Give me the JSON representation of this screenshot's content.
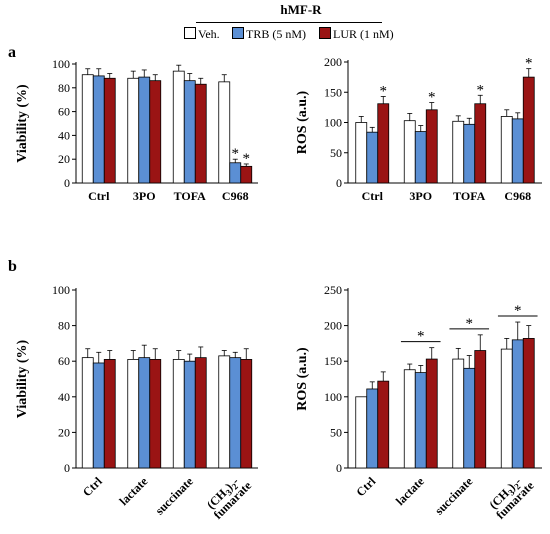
{
  "header": {
    "title": "hMF-R"
  },
  "legend": [
    {
      "label": "Veh.",
      "color": "#ffffff"
    },
    {
      "label": "TRB (5 nM)",
      "color": "#5b8fd4"
    },
    {
      "label": "LUR (1 nM)",
      "color": "#9a1414"
    }
  ],
  "panels": {
    "a": "a",
    "b": "b"
  },
  "colors": {
    "veh": "#ffffff",
    "trb": "#5b8fd4",
    "lur": "#9a1414",
    "star_fill": "#e60000"
  },
  "chart_data": [
    {
      "id": "a-viability",
      "type": "bar",
      "ylabel": "Viability (%)",
      "ylim": [
        0,
        100
      ],
      "yticks": [
        0,
        20,
        40,
        60,
        80,
        100
      ],
      "categories": [
        "Ctrl",
        "3PO",
        "TOFA",
        "C968"
      ],
      "series": [
        {
          "name": "Veh.",
          "values": [
            91,
            88,
            94,
            85
          ],
          "errors": [
            5,
            6,
            5,
            6
          ]
        },
        {
          "name": "TRB (5 nM)",
          "values": [
            90,
            89,
            86,
            17
          ],
          "errors": [
            6,
            6,
            6,
            3
          ]
        },
        {
          "name": "LUR (1 nM)",
          "values": [
            88,
            86,
            83,
            14
          ],
          "errors": [
            4,
            5,
            5,
            2
          ]
        }
      ],
      "significance": [
        [
          3,
          1
        ],
        [
          3,
          2
        ]
      ],
      "star": "*"
    },
    {
      "id": "a-ros",
      "type": "bar",
      "ylabel": "ROS (a.u.)",
      "ylim": [
        0,
        200
      ],
      "yticks": [
        0,
        50,
        100,
        150,
        200
      ],
      "categories": [
        "Ctrl",
        "3PO",
        "TOFA",
        "C968"
      ],
      "series": [
        {
          "name": "Veh.",
          "values": [
            100,
            103,
            102,
            110
          ],
          "errors": [
            10,
            12,
            9,
            11
          ]
        },
        {
          "name": "TRB (5 nM)",
          "values": [
            84,
            85,
            97,
            106
          ],
          "errors": [
            8,
            10,
            10,
            10
          ]
        },
        {
          "name": "LUR (1 nM)",
          "values": [
            131,
            121,
            131,
            175
          ],
          "errors": [
            12,
            12,
            14,
            14
          ]
        }
      ],
      "significance": [
        [
          0,
          2
        ],
        [
          1,
          2
        ],
        [
          2,
          2
        ],
        [
          3,
          2
        ]
      ],
      "star": "*"
    },
    {
      "id": "b-viability",
      "type": "bar",
      "ylabel": "Viability (%)",
      "ylim": [
        0,
        100
      ],
      "yticks": [
        0,
        20,
        40,
        60,
        80,
        100
      ],
      "categories": [
        "Ctrl",
        "lactate",
        "succinate",
        "(CH3)2-fumarate"
      ],
      "series": [
        {
          "name": "Veh.",
          "values": [
            62,
            61,
            61,
            63
          ],
          "errors": [
            5,
            5,
            5,
            3
          ]
        },
        {
          "name": "TRB (5 nM)",
          "values": [
            59,
            62,
            60,
            62
          ],
          "errors": [
            6,
            7,
            4,
            3
          ]
        },
        {
          "name": "LUR (1 nM)",
          "values": [
            61,
            61,
            62,
            61
          ],
          "errors": [
            5,
            6,
            6,
            6
          ]
        }
      ]
    },
    {
      "id": "b-ros",
      "type": "bar",
      "ylabel": "ROS (a.u.)",
      "ylim": [
        0,
        250
      ],
      "yticks": [
        0,
        50,
        100,
        150,
        200,
        250
      ],
      "categories": [
        "Ctrl",
        "lactate",
        "succinate",
        "(CH3)2-fumarate"
      ],
      "series": [
        {
          "name": "Veh.",
          "values": [
            100,
            138,
            153,
            167
          ],
          "errors": [
            0,
            8,
            15,
            15
          ]
        },
        {
          "name": "TRB (5 nM)",
          "values": [
            111,
            134,
            140,
            180
          ],
          "errors": [
            10,
            10,
            18,
            25
          ]
        },
        {
          "name": "LUR (1 nM)",
          "values": [
            122,
            153,
            165,
            182
          ],
          "errors": [
            13,
            16,
            22,
            18
          ]
        }
      ],
      "brackets": [
        1,
        2,
        3
      ],
      "star": "*"
    }
  ]
}
